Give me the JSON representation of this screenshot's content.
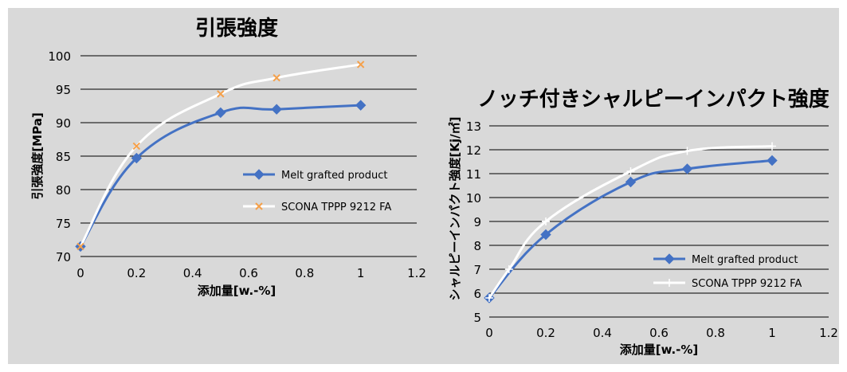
{
  "chart_data": [
    {
      "type": "line",
      "title": "引張強度",
      "xlabel": "添加量[w.-%]",
      "ylabel": "引張強度[MPa]",
      "xlim": [
        0,
        1.2
      ],
      "ylim": [
        70,
        100
      ],
      "xticks": [
        "0",
        "0.2",
        "0.4",
        "0.6",
        "0.8",
        "1",
        "1.2"
      ],
      "yticks": [
        "70",
        "75",
        "80",
        "85",
        "90",
        "95",
        "100"
      ],
      "grid": "horizontal",
      "legend_position": "right",
      "series": [
        {
          "name": "Melt grafted product",
          "color": "#4472c4",
          "marker": "diamond",
          "x": [
            0,
            0.2,
            0.5,
            0.7,
            1.0
          ],
          "y": [
            71.5,
            84.7,
            91.5,
            92.0,
            92.6
          ]
        },
        {
          "name": "SCONA TPPP 9212 FA",
          "color": "#ffffff",
          "marker": "x",
          "marker_color": "#f5a04a",
          "x": [
            0,
            0.2,
            0.5,
            0.7,
            1.0
          ],
          "y": [
            71.5,
            86.5,
            94.3,
            96.7,
            98.7
          ]
        }
      ]
    },
    {
      "type": "line",
      "title": "ノッチ付きシャルピーインパクト強度",
      "xlabel": "添加量[w.-%]",
      "ylabel": "シャルピーインパクト強度[Kj/㎡]",
      "xlim": [
        0,
        1.2
      ],
      "ylim": [
        5,
        13
      ],
      "xticks": [
        "0",
        "0.2",
        "0.4",
        "0.6",
        "0.8",
        "1",
        "1.2"
      ],
      "yticks": [
        "5",
        "6",
        "7",
        "8",
        "9",
        "10",
        "11",
        "12",
        "13"
      ],
      "grid": "horizontal",
      "legend_position": "bottom-right",
      "series": [
        {
          "name": "Melt grafted product",
          "color": "#4472c4",
          "marker": "diamond",
          "x": [
            0,
            0.2,
            0.5,
            0.7,
            1.0
          ],
          "y": [
            5.8,
            8.45,
            10.65,
            11.2,
            11.55
          ]
        },
        {
          "name": "SCONA TPPP 9212 FA",
          "color": "#ffffff",
          "marker": "plus",
          "x": [
            0,
            0.07,
            0.2,
            0.5,
            0.7,
            1.0
          ],
          "y": [
            5.8,
            7.0,
            9.0,
            11.1,
            11.95,
            12.15
          ]
        }
      ]
    }
  ]
}
